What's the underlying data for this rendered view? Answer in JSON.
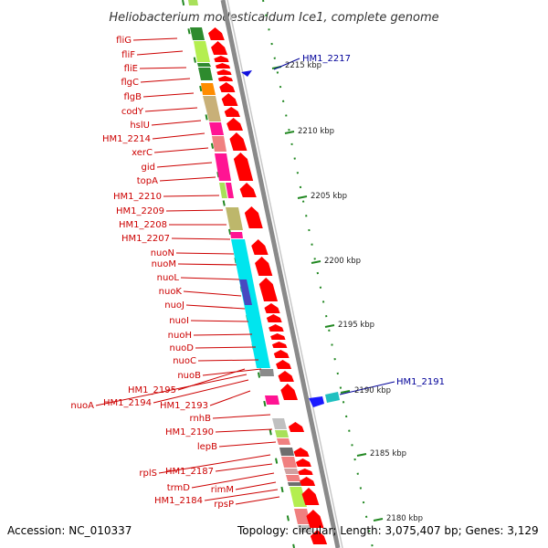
{
  "title": "Heliobacterium modesticaldum Ice1, complete genome",
  "footer": {
    "accession": "Accession: NC_010337",
    "topology": "Topology: circular; Length: 3,075,407 bp; Genes: 3,129"
  },
  "ticks": [
    "2215 kbp",
    "2210 kbp",
    "2205 kbp",
    "2200 kbp",
    "2195 kbp",
    "2190 kbp",
    "2185 kbp",
    "2180 kbp"
  ],
  "gene_labels": [
    "fliG",
    "fliF",
    "fliE",
    "flgC",
    "flgB",
    "codY",
    "hslU",
    "HM1_2214",
    "xerC",
    "gid",
    "topA",
    "HM1_2210",
    "HM1_2209",
    "HM1_2208",
    "HM1_2207",
    "nuoN",
    "nuoM",
    "nuoL",
    "nuoK",
    "nuoJ",
    "nuoI",
    "nuoH",
    "nuoD",
    "nuoC",
    "nuoB",
    "HM1_2195",
    "nuoA",
    "HM1_2194",
    "HM1_2193",
    "rnhB",
    "HM1_2190",
    "lepB",
    "rplS",
    "HM1_2187",
    "trmD",
    "rimM",
    "HM1_2184",
    "rpsP"
  ],
  "highlight_labels": [
    "HM1_2217",
    "HM1_2191"
  ],
  "colors": {
    "gene_label": "#cc0000",
    "highlight_label": "#000099",
    "forward_arrow": "#ff0000",
    "backbone": "#888888",
    "tick_mark": "#228822"
  }
}
